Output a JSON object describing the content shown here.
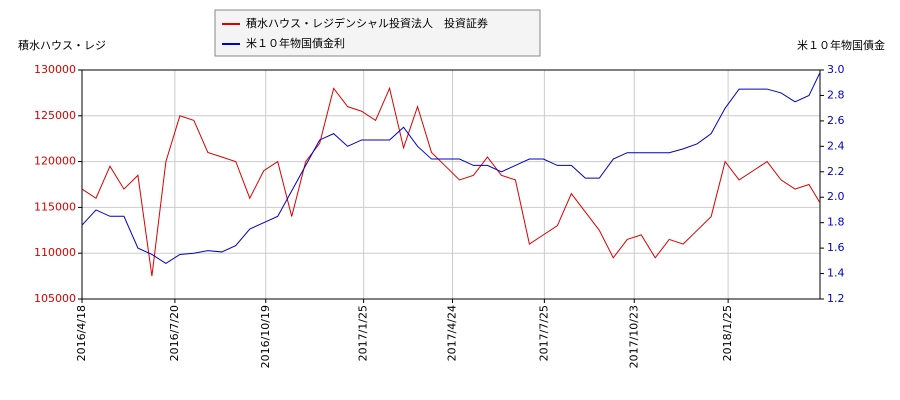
{
  "chart_data": {
    "type": "line",
    "y_label": "積水ハウス・レジ",
    "y2_label": "米１０年物国債金",
    "legend": "top",
    "grid": true,
    "x": [
      "2016/4/18",
      "2016/5/2",
      "2016/5/16",
      "2016/5/30",
      "2016/6/13",
      "2016/6/27",
      "2016/7/11",
      "2016/7/25",
      "2016/8/8",
      "2016/8/22",
      "2016/9/5",
      "2016/9/19",
      "2016/10/3",
      "2016/10/17",
      "2016/10/31",
      "2016/11/14",
      "2016/11/28",
      "2016/12/12",
      "2016/12/26",
      "2017/1/9",
      "2017/1/23",
      "2017/2/6",
      "2017/2/20",
      "2017/3/6",
      "2017/3/20",
      "2017/4/3",
      "2017/4/17",
      "2017/5/1",
      "2017/5/15",
      "2017/5/29",
      "2017/6/12",
      "2017/6/26",
      "2017/7/10",
      "2017/7/24",
      "2017/8/7",
      "2017/8/21",
      "2017/9/4",
      "2017/9/18",
      "2017/10/2",
      "2017/10/16",
      "2017/10/30",
      "2017/11/13",
      "2017/11/27",
      "2017/12/11",
      "2017/12/25",
      "2018/1/8",
      "2018/1/22",
      "2018/2/5",
      "2018/2/19",
      "2018/3/5",
      "2018/3/19",
      "2018/4/2",
      "2018/4/16",
      "2018/4/27"
    ],
    "xlim": [
      "2016/4/18",
      "2018/4/27"
    ],
    "xticks": [
      "2016/4/18",
      "2016/7/20",
      "2016/10/19",
      "2017/1/25",
      "2017/4/24",
      "2017/7/25",
      "2017/10/23",
      "2018/1/25"
    ],
    "ylim": [
      105000,
      130000
    ],
    "yticks": [
      105000,
      110000,
      115000,
      120000,
      125000,
      130000
    ],
    "y2lim": [
      1.2,
      3.0
    ],
    "y2ticks": [
      1.2,
      1.4,
      1.6,
      1.8,
      {
        "value": 2.0,
        "label": "2.0"
      },
      2.2,
      2.4,
      2.6,
      2.8,
      {
        "value": 3.0,
        "label": "3.0"
      }
    ],
    "series": [
      {
        "name": "積水ハウス・レジデンシャル投資法人　投資証券",
        "color": "#dd0000",
        "values": [
          117000,
          116000,
          119500,
          117000,
          118500,
          107500,
          120000,
          125000,
          124500,
          121000,
          120500,
          120000,
          116000,
          119000,
          120000,
          114000,
          120000,
          122000,
          128000,
          126000,
          125500,
          124500,
          128000,
          121500,
          126000,
          121000,
          119500,
          118000,
          118500,
          120500,
          118500,
          118000,
          111000,
          112000,
          113000,
          116500,
          114500,
          112500,
          109500,
          111500,
          112000,
          109500,
          111500,
          111000,
          112500,
          114000,
          120000,
          118000,
          119000,
          120000,
          118000,
          117000,
          117500,
          115500
        ]
      },
      {
        "name": "米１０年物国債金利",
        "color": "#0000cc",
        "axis": "y2",
        "values": [
          1.78,
          1.9,
          1.85,
          1.85,
          1.6,
          1.55,
          1.48,
          1.55,
          1.56,
          1.58,
          1.57,
          1.62,
          1.75,
          1.8,
          1.85,
          2.05,
          2.25,
          2.45,
          2.5,
          2.4,
          2.45,
          2.45,
          2.45,
          2.55,
          2.4,
          2.3,
          2.3,
          2.3,
          2.25,
          2.25,
          2.2,
          2.25,
          2.3,
          2.3,
          2.25,
          2.25,
          2.15,
          2.15,
          2.3,
          2.35,
          2.35,
          2.35,
          2.35,
          2.38,
          2.42,
          2.5,
          2.7,
          2.85,
          2.85,
          2.85,
          2.82,
          2.75,
          2.8,
          2.98
        ]
      }
    ]
  }
}
